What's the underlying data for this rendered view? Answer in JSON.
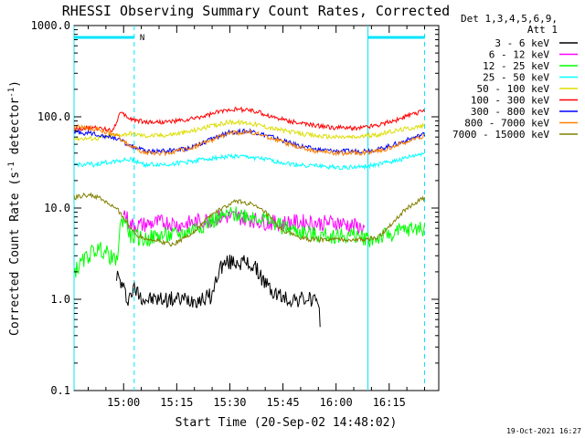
{
  "chart_data": {
    "type": "line",
    "title": "RHESSI Observing Summary Count Rates, Corrected",
    "xlabel": "Start Time (20-Sep-02 14:48:02)",
    "ylabel": "Corrected Count Rate (s-1 detector-1)",
    "ylabel_parts": {
      "pre": "Corrected Count Rate (s",
      "sup1": "-1",
      "mid": " detector",
      "sup2": "-1",
      "post": ")"
    },
    "y_scale": "log",
    "ylim": [
      0.1,
      1000
    ],
    "y_ticks": [
      "1000.0",
      "100.0",
      "10.0",
      "1.0",
      "0.1"
    ],
    "xlim": [
      -2,
      101
    ],
    "x_unit": "minutes since 14:48:02",
    "x_ticks": [
      {
        "label": "15:00",
        "t": 12
      },
      {
        "label": "15:15",
        "t": 27
      },
      {
        "label": "15:30",
        "t": 42
      },
      {
        "label": "15:45",
        "t": 57
      },
      {
        "label": "16:00",
        "t": 72
      },
      {
        "label": "16:15",
        "t": 87
      }
    ],
    "legend_header": [
      "Det 1,3,4,5,6,9,",
      "Att 1"
    ],
    "legend_position": "right",
    "grid": false,
    "annotations": {
      "night_markers": [
        {
          "t_start": -2,
          "t_end": 15,
          "label": "N"
        },
        {
          "t_start": 81,
          "t_end": 97,
          "label": ""
        }
      ],
      "dashed_lines_t": [
        15,
        97
      ],
      "solid_lines_t": [
        -2,
        81
      ]
    },
    "series": [
      {
        "name": "3 - 6 keV",
        "color": "#000000",
        "x": [
          10,
          12,
          13,
          15,
          18,
          22,
          26,
          30,
          34,
          37,
          39,
          41,
          44,
          48,
          50,
          52,
          54,
          56,
          58,
          60,
          62,
          64,
          66,
          67.5
        ],
        "y": [
          1.9,
          1.3,
          1.0,
          1.3,
          1.0,
          1.0,
          1.0,
          1.0,
          1.0,
          1.1,
          2.2,
          2.5,
          2.6,
          2.4,
          2.0,
          1.5,
          1.2,
          1.1,
          1.0,
          1.0,
          1.0,
          1.0,
          1.0,
          0.6
        ]
      },
      {
        "name": "6 - 12 keV",
        "color": "#ff00ff",
        "x": [
          12,
          14,
          17,
          20,
          24,
          28,
          32,
          36,
          40,
          44,
          48,
          52,
          56,
          60,
          64,
          68,
          72,
          76,
          80
        ],
        "y": [
          9.0,
          6.5,
          6.5,
          6.8,
          7.0,
          6.5,
          7.0,
          7.5,
          8.0,
          8.0,
          7.5,
          7.0,
          6.8,
          7.0,
          7.0,
          6.8,
          7.0,
          6.5,
          6.0
        ]
      },
      {
        "name": "12 - 25 keV",
        "color": "#00ff00",
        "x": [
          -2,
          2,
          4,
          6,
          8,
          10,
          11,
          12,
          14,
          18,
          22,
          26,
          30,
          34,
          38,
          42,
          46,
          50,
          54,
          58,
          62,
          66,
          70,
          74,
          78,
          82,
          86,
          90,
          94,
          97
        ],
        "y": [
          2.0,
          3.0,
          3.5,
          3.5,
          3.0,
          2.5,
          6.0,
          8.0,
          5.0,
          4.5,
          5.0,
          5.0,
          5.5,
          6.5,
          7.5,
          8.5,
          8.5,
          8.0,
          7.0,
          6.0,
          5.5,
          5.0,
          5.0,
          5.0,
          5.0,
          4.5,
          5.0,
          5.5,
          6.0,
          6.0
        ]
      },
      {
        "name": "25 - 50 keV",
        "color": "#00ffff",
        "x": [
          -2,
          4,
          10,
          14,
          18,
          24,
          30,
          36,
          42,
          48,
          54,
          60,
          66,
          72,
          78,
          84,
          90,
          97
        ],
        "y": [
          30,
          30,
          33,
          34,
          30,
          30,
          32,
          35,
          37,
          36,
          33,
          30,
          29,
          28,
          28,
          30,
          34,
          40
        ]
      },
      {
        "name": "50 - 100 keV",
        "color": "#dddd00",
        "x": [
          -2,
          4,
          10,
          14,
          18,
          24,
          30,
          36,
          42,
          48,
          54,
          60,
          66,
          72,
          78,
          84,
          90,
          97
        ],
        "y": [
          58,
          58,
          63,
          66,
          62,
          63,
          68,
          78,
          88,
          85,
          75,
          67,
          62,
          60,
          60,
          64,
          72,
          80
        ]
      },
      {
        "name": "100 - 300 keV",
        "color": "#ff0000",
        "x": [
          -2,
          4,
          9,
          11,
          14,
          18,
          24,
          30,
          36,
          42,
          48,
          54,
          60,
          66,
          72,
          78,
          84,
          90,
          97
        ],
        "y": [
          75,
          75,
          72,
          110,
          95,
          88,
          88,
          92,
          105,
          122,
          118,
          100,
          88,
          80,
          76,
          75,
          82,
          95,
          118
        ]
      },
      {
        "name": "300 - 800 keV",
        "color": "#0000ff",
        "x": [
          -2,
          4,
          10,
          14,
          18,
          24,
          30,
          36,
          42,
          48,
          54,
          60,
          66,
          72,
          78,
          84,
          90,
          97
        ],
        "y": [
          68,
          65,
          58,
          48,
          42,
          42,
          45,
          55,
          68,
          70,
          60,
          50,
          44,
          42,
          42,
          44,
          52,
          65
        ]
      },
      {
        "name": "800 - 7000 keV",
        "color": "#ff8000",
        "x": [
          -2,
          4,
          10,
          14,
          18,
          24,
          30,
          36,
          42,
          48,
          54,
          60,
          66,
          72,
          78,
          84,
          90,
          97
        ],
        "y": [
          78,
          74,
          62,
          48,
          40,
          40,
          44,
          54,
          66,
          68,
          58,
          48,
          42,
          40,
          40,
          42,
          50,
          62
        ]
      },
      {
        "name": "7000 - 15000 keV",
        "color": "#808000",
        "x": [
          -2,
          2,
          5,
          8,
          11,
          14,
          16,
          20,
          26,
          32,
          36,
          40,
          44,
          48,
          52,
          56,
          60,
          64,
          68,
          72,
          76,
          80,
          84,
          88,
          92,
          97
        ],
        "y": [
          13,
          14,
          13,
          11,
          9,
          6,
          5,
          4.5,
          4.0,
          5.5,
          8,
          10,
          12,
          11,
          9,
          6,
          5,
          4.5,
          4.5,
          4.5,
          4.5,
          4.5,
          4.8,
          7,
          10,
          13
        ]
      }
    ]
  },
  "footer_stamp": "19-Oct-2021 16:27"
}
